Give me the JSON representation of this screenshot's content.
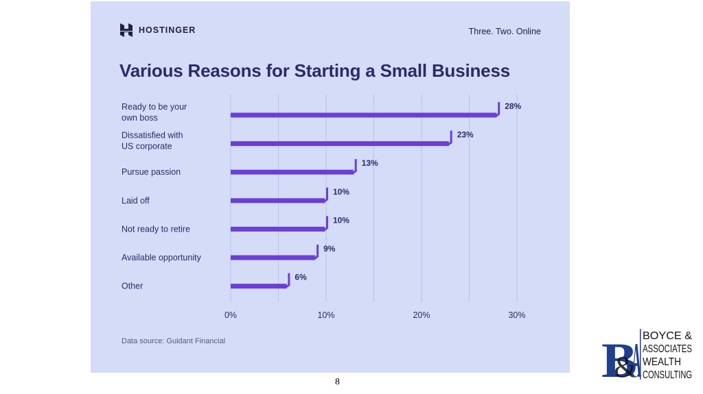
{
  "brand": {
    "name": "HOSTINGER",
    "tagline": "Three. Two. Online"
  },
  "colors": {
    "panel": "#d4dcf8",
    "bar": "#6a3fd6",
    "text": "#2d2a66",
    "grid": "#b9c2ea"
  },
  "source_text": "Data source: Guidant Financial",
  "page_number": "8",
  "ba_logo": {
    "monogram": "B&A",
    "lines": [
      "BOYCE &",
      "ASSOCIATES",
      "WEALTH",
      "CONSULTING"
    ]
  },
  "chart_data": {
    "type": "bar",
    "orientation": "horizontal",
    "title": "Various Reasons for Starting a Small Business",
    "categories": [
      [
        "Ready to be your",
        "own boss"
      ],
      [
        "Dissatisfied with",
        "US corporate"
      ],
      [
        "Pursue passion"
      ],
      [
        "Laid off"
      ],
      [
        "Not ready to retire"
      ],
      [
        "Available opportunity"
      ],
      [
        "Other"
      ]
    ],
    "values": [
      28,
      23,
      13,
      10,
      10,
      9,
      6
    ],
    "data_labels": [
      "28%",
      "23%",
      "13%",
      "10%",
      "10%",
      "9%",
      "6%"
    ],
    "xlim": [
      0,
      30
    ],
    "xticks": [
      0,
      10,
      20,
      30
    ],
    "xtick_labels": [
      "0%",
      "10%",
      "20%",
      "30%"
    ],
    "grid": true
  }
}
